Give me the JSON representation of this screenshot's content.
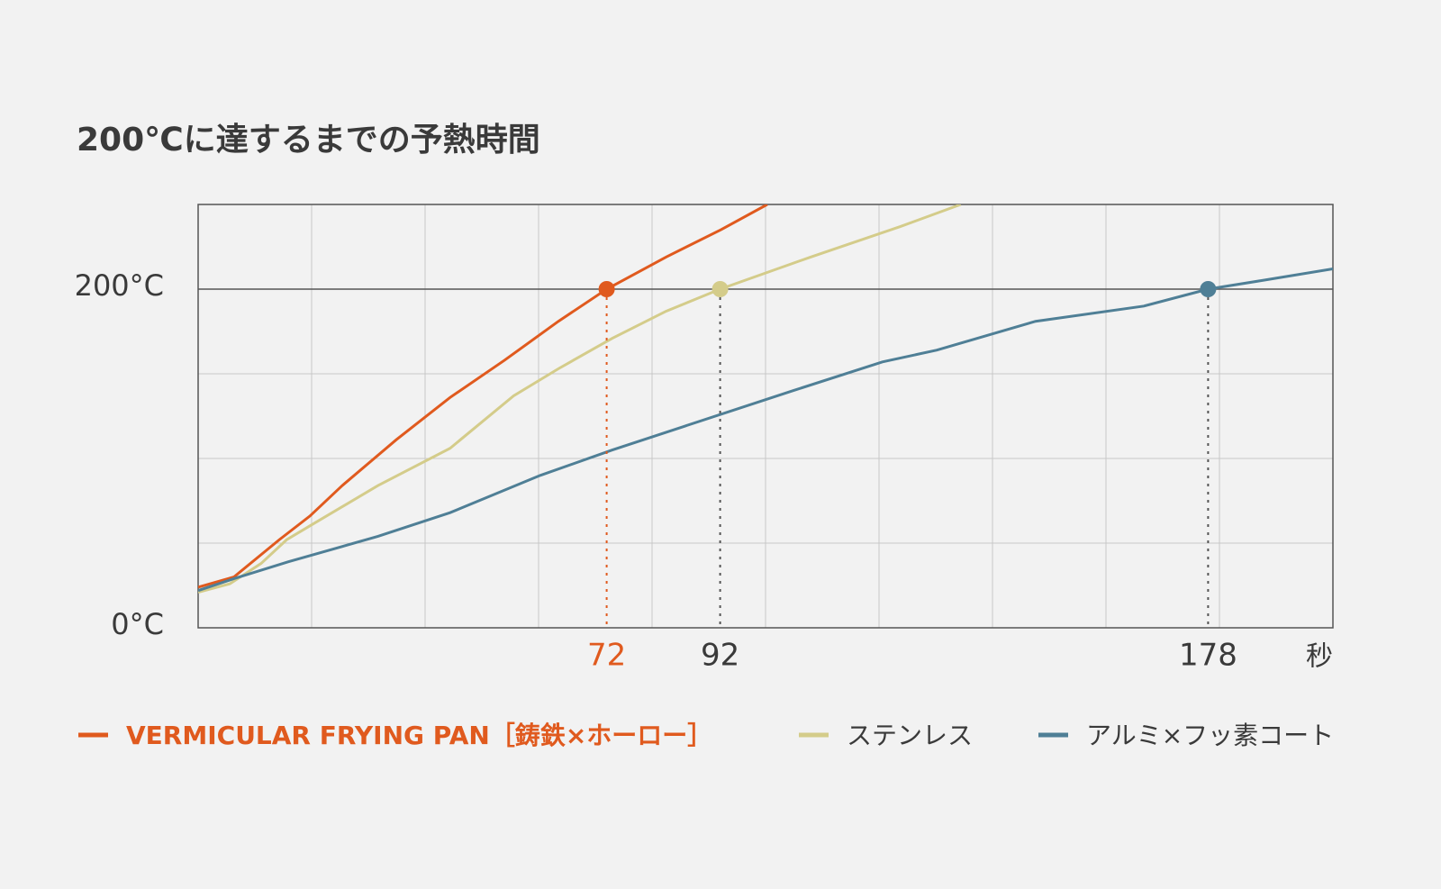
{
  "chart_data": {
    "type": "line",
    "title": "200℃に達するまでの予熱時間",
    "x_label": "秒",
    "xlim": [
      0,
      200
    ],
    "ylim": [
      0,
      250
    ],
    "xticks": [
      {
        "value": 20,
        "label": null
      },
      {
        "value": 40,
        "label": null
      },
      {
        "value": 60,
        "label": null
      },
      {
        "value": 80,
        "label": null
      },
      {
        "value": 100,
        "label": null
      },
      {
        "value": 120,
        "label": null
      },
      {
        "value": 140,
        "label": null
      },
      {
        "value": 160,
        "label": null
      },
      {
        "value": 180,
        "label": null
      }
    ],
    "yticks": [
      {
        "value": 0,
        "label": "0°C"
      },
      {
        "value": 50,
        "label": null
      },
      {
        "value": 100,
        "label": null
      },
      {
        "value": 150,
        "label": null
      },
      {
        "value": 200,
        "label": "200°C"
      },
      {
        "value": 250,
        "label": null
      }
    ],
    "reference_y": 200,
    "grid": true,
    "series": [
      {
        "name": "VERMICULAR FRYING PAN［鋳鉄×ホーロー］",
        "color": "#e05a1e",
        "highlight": true,
        "x": [
          0,
          6.3,
          14.3,
          19.7,
          25.4,
          34.9,
          44.4,
          54,
          63.5,
          72,
          82.5,
          92.1,
          100.3
        ],
        "values": [
          24,
          30,
          52,
          66,
          84,
          111,
          136,
          158,
          181,
          200,
          219,
          235,
          250
        ]
      },
      {
        "name": "ステンレス",
        "color": "#d4cc8a",
        "highlight": false,
        "x": [
          0,
          5.6,
          11.1,
          15.6,
          20.6,
          31.7,
          44.4,
          55.6,
          63.5,
          73,
          82.5,
          92,
          108,
          123.8,
          134.4
        ],
        "values": [
          21,
          26,
          38,
          52,
          62,
          84,
          106,
          137,
          153,
          171,
          187,
          200,
          219,
          237,
          250
        ]
      },
      {
        "name": "アルミ×フッ素コート",
        "color": "#4f7f96",
        "highlight": false,
        "x": [
          0,
          6.3,
          15.9,
          31.7,
          44.4,
          60.3,
          73,
          85.7,
          104.8,
          120.6,
          130.2,
          147.6,
          166.7,
          178,
          187.3,
          200
        ],
        "values": [
          22,
          29,
          39,
          54,
          68,
          90,
          105,
          119,
          140,
          157,
          164,
          181,
          190,
          200,
          205,
          212
        ]
      }
    ],
    "markers": [
      {
        "series": 0,
        "x": 72,
        "y": 200
      },
      {
        "series": 1,
        "x": 92,
        "y": 200
      },
      {
        "series": 2,
        "x": 178,
        "y": 200
      }
    ]
  }
}
